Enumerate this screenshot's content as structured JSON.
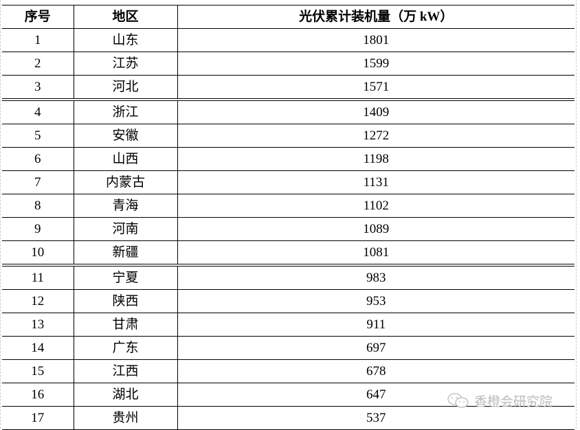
{
  "table": {
    "headers": [
      "序号",
      "地区",
      "光伏累计装机量（万 kW）"
    ],
    "rows": [
      [
        "1",
        "山东",
        "1801"
      ],
      [
        "2",
        "江苏",
        "1599"
      ],
      [
        "3",
        "河北",
        "1571"
      ],
      [
        "4",
        "浙江",
        "1409"
      ],
      [
        "5",
        "安徽",
        "1272"
      ],
      [
        "6",
        "山西",
        "1198"
      ],
      [
        "7",
        "内蒙古",
        "1131"
      ],
      [
        "8",
        "青海",
        "1102"
      ],
      [
        "9",
        "河南",
        "1089"
      ],
      [
        "10",
        "新疆",
        "1081"
      ],
      [
        "11",
        "宁夏",
        "983"
      ],
      [
        "12",
        "陕西",
        "953"
      ],
      [
        "13",
        "甘肃",
        "911"
      ],
      [
        "14",
        "广东",
        "697"
      ],
      [
        "15",
        "江西",
        "678"
      ],
      [
        "16",
        "湖北",
        "647"
      ],
      [
        "17",
        "贵州",
        "537"
      ]
    ]
  },
  "watermark": {
    "text": "香橙会研究院",
    "icon": "wechat-icon"
  }
}
